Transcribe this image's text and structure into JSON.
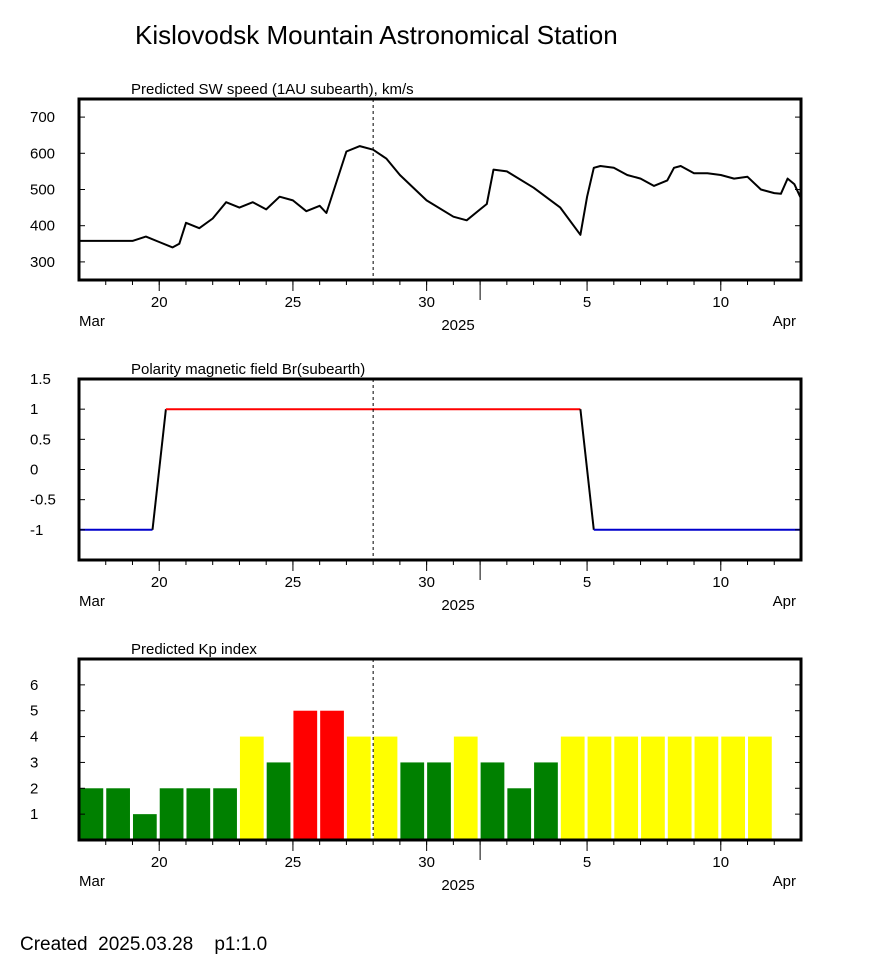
{
  "title": "Kislovodsk Mountain Astronomical Station",
  "footer": "Created  2025.03.28    p1:1.0",
  "date_axis": {
    "start": "2025-03-17",
    "end": "2025-04-13",
    "day_ticks": [
      {
        "label": "20",
        "date": "2025-03-20"
      },
      {
        "label": "25",
        "date": "2025-03-25"
      },
      {
        "label": "30",
        "date": "2025-03-30"
      },
      {
        "label": "5",
        "date": "2025-04-05"
      },
      {
        "label": "10",
        "date": "2025-04-10"
      }
    ],
    "month_left": "Mar",
    "month_right": "Apr",
    "year": "2025",
    "current_date_marker": "2025-03-28"
  },
  "chart_data": [
    {
      "type": "line",
      "title": "Predicted SW speed (1AU subearth), km/s",
      "ylim": [
        250,
        750
      ],
      "yticks": [
        300,
        400,
        500,
        600,
        700
      ],
      "series": [
        {
          "color": "#000000",
          "x": [
            "2025-03-17",
            "2025-03-18",
            "2025-03-19",
            "2025-03-19T12:00",
            "2025-03-20",
            "2025-03-20T12:00",
            "2025-03-20T18:00",
            "2025-03-21",
            "2025-03-21T12:00",
            "2025-03-22",
            "2025-03-22T12:00",
            "2025-03-23",
            "2025-03-23T12:00",
            "2025-03-24",
            "2025-03-24T12:00",
            "2025-03-25",
            "2025-03-25T12:00",
            "2025-03-26",
            "2025-03-26T06:00",
            "2025-03-27",
            "2025-03-27T12:00",
            "2025-03-28",
            "2025-03-28T12:00",
            "2025-03-29",
            "2025-03-30",
            "2025-03-31",
            "2025-03-31T12:00",
            "2025-04-01",
            "2025-04-01T06:00",
            "2025-04-01T12:00",
            "2025-04-02",
            "2025-04-03",
            "2025-04-04",
            "2025-04-04T18:00",
            "2025-04-05",
            "2025-04-05T06:00",
            "2025-04-05T12:00",
            "2025-04-06",
            "2025-04-06T12:00",
            "2025-04-07",
            "2025-04-07T12:00",
            "2025-04-08",
            "2025-04-08T06:00",
            "2025-04-08T12:00",
            "2025-04-09",
            "2025-04-09T12:00",
            "2025-04-10",
            "2025-04-10T12:00",
            "2025-04-11",
            "2025-04-11T12:00",
            "2025-04-12",
            "2025-04-12T06:00",
            "2025-04-12T12:00",
            "2025-04-12T18:00",
            "2025-04-13"
          ],
          "values": [
            358,
            358,
            358,
            370,
            355,
            340,
            350,
            408,
            393,
            420,
            465,
            450,
            465,
            445,
            480,
            470,
            440,
            455,
            435,
            605,
            620,
            610,
            585,
            540,
            470,
            425,
            415,
            445,
            460,
            555,
            550,
            505,
            450,
            375,
            480,
            560,
            565,
            560,
            540,
            530,
            510,
            525,
            560,
            565,
            545,
            545,
            540,
            530,
            535,
            500,
            490,
            488,
            530,
            515,
            475
          ]
        }
      ]
    },
    {
      "type": "line",
      "title": "Polarity magnetic field  Br(subearth)",
      "ylim": [
        -1.5,
        1.5
      ],
      "yticks": [
        {
          "value": 1.5,
          "label": "1.5"
        },
        {
          "value": 1,
          "label": "1"
        },
        {
          "value": 0.5,
          "label": "0.5"
        },
        {
          "value": 0,
          "label": "0"
        },
        {
          "value": -0.5,
          "label": "-0.5"
        },
        {
          "value": -1,
          "label": "-1"
        }
      ],
      "series": [
        {
          "color": "#0000cc",
          "x": [
            "2025-03-17",
            "2025-03-19T18:00"
          ],
          "values": [
            -1,
            -1
          ]
        },
        {
          "color": "#000000",
          "x": [
            "2025-03-19T18:00",
            "2025-03-20T06:00"
          ],
          "values": [
            -1,
            1
          ]
        },
        {
          "color": "#ff0000",
          "x": [
            "2025-03-20T06:00",
            "2025-04-04T18:00"
          ],
          "values": [
            1,
            1
          ]
        },
        {
          "color": "#000000",
          "x": [
            "2025-04-04T18:00",
            "2025-04-05T06:00"
          ],
          "values": [
            1,
            -1
          ]
        },
        {
          "color": "#0000cc",
          "x": [
            "2025-04-05T06:00",
            "2025-04-13"
          ],
          "values": [
            -1,
            -1
          ]
        }
      ]
    },
    {
      "type": "bar",
      "title": "Predicted Kp index",
      "ylim": [
        0,
        7
      ],
      "yticks": [
        1,
        2,
        3,
        4,
        5,
        6
      ],
      "categories": [
        "2025-03-17",
        "2025-03-18",
        "2025-03-19",
        "2025-03-20",
        "2025-03-21",
        "2025-03-22",
        "2025-03-23",
        "2025-03-24",
        "2025-03-25",
        "2025-03-26",
        "2025-03-27",
        "2025-03-28",
        "2025-03-29",
        "2025-03-30",
        "2025-03-31",
        "2025-04-01",
        "2025-04-02",
        "2025-04-03",
        "2025-04-04",
        "2025-04-05",
        "2025-04-06",
        "2025-04-07",
        "2025-04-08",
        "2025-04-09",
        "2025-04-10",
        "2025-04-11",
        "2025-04-12"
      ],
      "values": [
        2,
        2,
        1,
        2,
        2,
        2,
        4,
        3,
        5,
        5,
        4,
        4,
        3,
        3,
        4,
        3,
        2,
        3,
        4,
        4,
        4,
        4,
        4,
        4,
        4,
        4,
        0
      ],
      "colors": {
        "quiet": "#008000",
        "active": "#ffff00",
        "storm": "#ff0000"
      },
      "color_rule": "Kp <= 3 quiet, Kp = 4 active, Kp >= 5 storm"
    }
  ]
}
